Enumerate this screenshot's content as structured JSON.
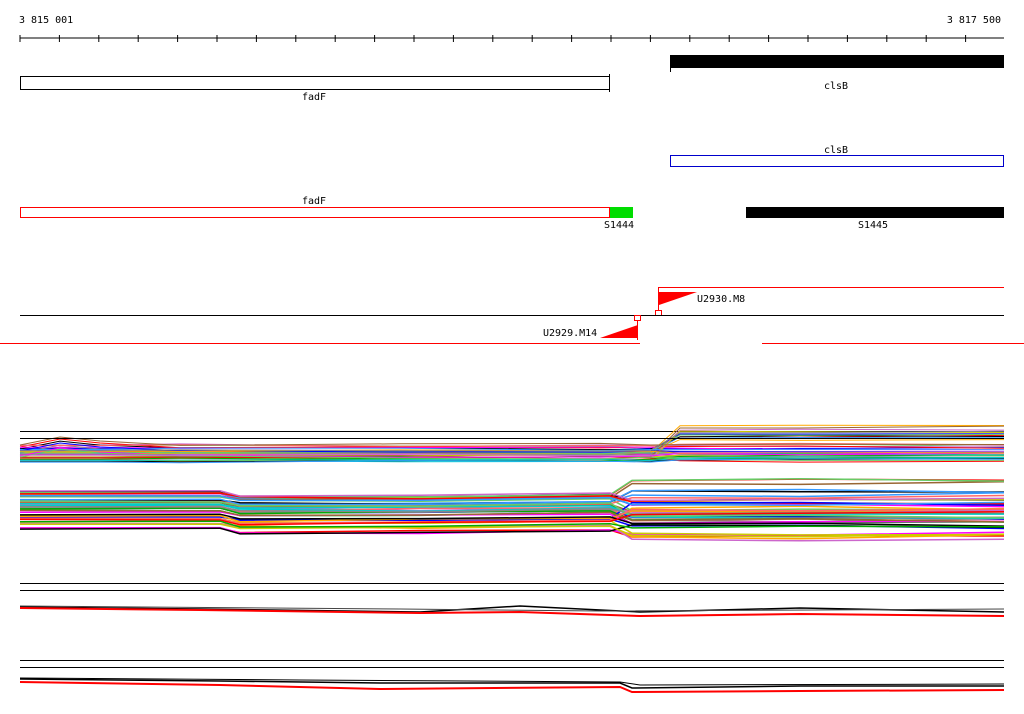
{
  "ruler": {
    "start_label": "3 815 001",
    "end_label": "3 817 500"
  },
  "genes": {
    "top_black": {
      "label": "clsB"
    },
    "top_fadF": {
      "label": "fadF"
    },
    "blue_clsB": {
      "label": "clsB"
    },
    "red_fadF": {
      "label": "fadF"
    },
    "green_feature": {
      "label": "S1444",
      "color": "#00dd00"
    },
    "bottom_black": {
      "label": "S1445"
    }
  },
  "markers": {
    "right": {
      "label": "U2930.M8",
      "color": "#ff0000"
    },
    "left": {
      "label": "U2929.M14",
      "color": "#ff0000"
    }
  },
  "palette": [
    "#000000",
    "#ff0000",
    "#00aa00",
    "#0000ff",
    "#ff00ff",
    "#00cccc",
    "#ffaa00",
    "#888888",
    "#996633",
    "#66cc66",
    "#cc66cc",
    "#3399ff",
    "#cccc00",
    "#ff6666"
  ]
}
